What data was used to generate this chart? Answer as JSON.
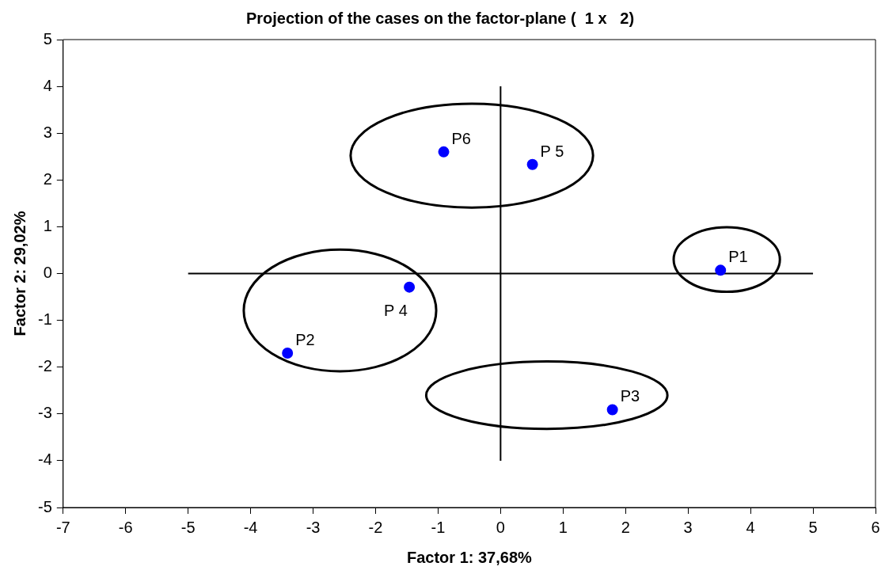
{
  "chart_data": {
    "type": "scatter",
    "title": "Projection of the cases on the factor-plane (  1 x   2)",
    "xlabel": "Factor 1: 37,68%",
    "ylabel": "Factor 2: 29,02%",
    "x": [
      3.52,
      -3.41,
      1.79,
      -1.46,
      0.51,
      -0.91
    ],
    "series": [
      {
        "color": "#0000ff",
        "values": [
          0.07,
          -1.7,
          -2.91,
          -0.29,
          2.33,
          2.6
        ]
      },
      {
        "type": "line",
        "color": "#000000",
        "x": [
          -5,
          5
        ],
        "values": [
          0,
          0
        ],
        "marker": "none"
      },
      {
        "type": "line",
        "color": "#000000",
        "x": [
          0,
          0
        ],
        "values": [
          -4,
          4
        ],
        "marker": "none"
      }
    ],
    "annotations": [
      {
        "text": "P1",
        "x": 3.52,
        "y": 0.07
      },
      {
        "text": "P2",
        "x": -3.41,
        "y": -1.7
      },
      {
        "text": "P3",
        "x": 1.79,
        "y": -2.91
      },
      {
        "text": "P 4",
        "x": -1.46,
        "y": -0.29
      },
      {
        "text": "P 5",
        "x": 0.51,
        "y": 2.33
      },
      {
        "text": "P6",
        "x": -0.91,
        "y": 2.6
      }
    ],
    "xlim": [
      -7,
      6
    ],
    "xticks": [
      -7,
      -6,
      -5,
      -4,
      -3,
      -2,
      -1,
      0,
      1,
      2,
      3,
      4,
      5,
      6
    ],
    "ylim": [
      -5,
      5
    ],
    "yticks": [
      -5,
      -4,
      -3,
      -2,
      -1,
      0,
      1,
      2,
      3,
      4,
      5
    ],
    "grid": false,
    "legend": false,
    "marker": "circle"
  }
}
